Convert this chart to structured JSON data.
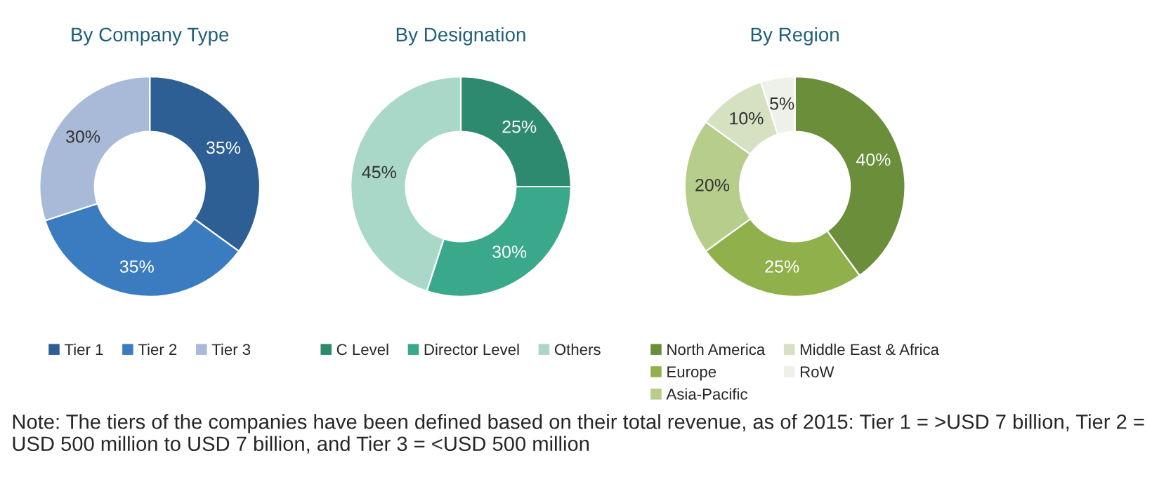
{
  "chart_data": [
    {
      "type": "donut",
      "title": "By Company Type",
      "categories": [
        "Tier 1",
        "Tier 2",
        "Tier 3"
      ],
      "values": [
        35,
        35,
        30
      ],
      "value_labels": [
        "35%",
        "35%",
        "30%"
      ],
      "colors": [
        "#2d5f94",
        "#3b7cc0",
        "#a9bad8"
      ],
      "legend": "bottom",
      "annotations": [
        "Note: The tiers of the companies have been defined based on their total revenue, as of 2015: Tier 1 = >USD 7 billion, Tier 2 = USD 500 million to USD 7 billion, and Tier 3 = <USD 500 million"
      ]
    },
    {
      "type": "donut",
      "title": "By Designation",
      "categories": [
        "C Level",
        "Director Level",
        "Others"
      ],
      "values": [
        25,
        30,
        45
      ],
      "value_labels": [
        "25%",
        "30%",
        "45%"
      ],
      "colors": [
        "#2e8a6f",
        "#3aa98b",
        "#a9d8c8"
      ],
      "legend": "bottom"
    },
    {
      "type": "donut",
      "title": "By Region",
      "categories": [
        "North America",
        "Europe",
        "Asia-Pacific",
        "Middle East & Africa",
        "RoW"
      ],
      "values": [
        40,
        25,
        20,
        10,
        5
      ],
      "value_labels": [
        "40%",
        "25%",
        "20%",
        "10%",
        "5%"
      ],
      "colors": [
        "#6a8e3a",
        "#8fb04a",
        "#b6cd8c",
        "#d6e1c2",
        "#eef1e8"
      ],
      "legend": "bottom"
    }
  ]
}
